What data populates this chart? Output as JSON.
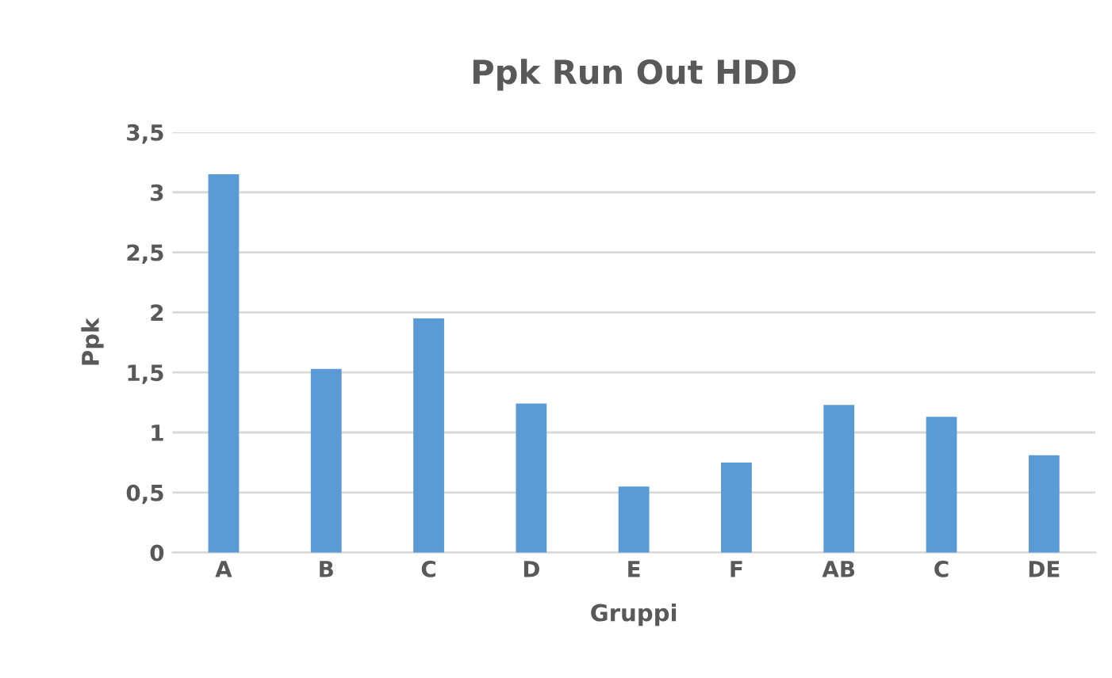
{
  "chart_data": {
    "type": "bar",
    "title": "Ppk Run Out HDD",
    "xlabel": "Gruppi",
    "ylabel": "Ppk",
    "categories": [
      "A",
      "B",
      "C",
      "D",
      "E",
      "F",
      "AB",
      "C",
      "DE"
    ],
    "values": [
      3.15,
      1.53,
      1.95,
      1.24,
      0.55,
      0.75,
      1.23,
      1.13,
      0.81
    ],
    "color": "#5b9bd5",
    "ylim": [
      0,
      3.5
    ],
    "yticks": [
      0,
      {
        "value": 0.5,
        "label": "0,5"
      },
      1,
      {
        "value": 1.5,
        "label": "1,5"
      },
      2,
      {
        "value": 2.5,
        "label": "2,5"
      },
      3,
      {
        "value": 3.5,
        "label": "3,5"
      }
    ],
    "grid": "y"
  }
}
